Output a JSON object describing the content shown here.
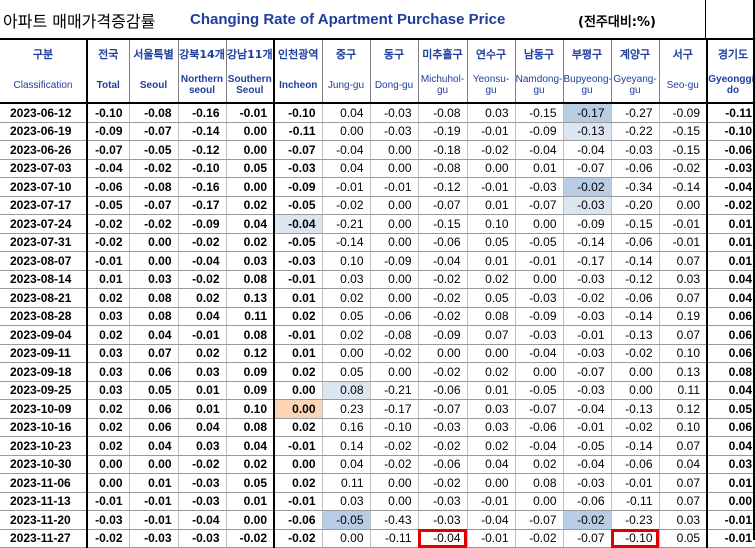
{
  "title": {
    "korean": "아파트 매매가격증감률",
    "english": "Changing Rate of Apartment Purchase Price",
    "unit": "(전주대비:%)"
  },
  "headers": [
    {
      "kr": "구분",
      "en": "Classification"
    },
    {
      "kr": "전국",
      "en": "Total"
    },
    {
      "kr": "서울특별",
      "en": "Seoul"
    },
    {
      "kr": "강북14개",
      "en": "Northern seoul"
    },
    {
      "kr": "강남11개",
      "en": "Southern Seoul"
    },
    {
      "kr": "인천광역",
      "en": "Incheon"
    },
    {
      "kr": "중구",
      "en": "Jung-gu"
    },
    {
      "kr": "동구",
      "en": "Dong-gu"
    },
    {
      "kr": "미추홀구",
      "en": "Michuhol-gu"
    },
    {
      "kr": "연수구",
      "en": "Yeonsu-gu"
    },
    {
      "kr": "남동구",
      "en": "Namdong-gu"
    },
    {
      "kr": "부평구",
      "en": "Bupyeong-gu"
    },
    {
      "kr": "계양구",
      "en": "Gyeyang-gu"
    },
    {
      "kr": "서구",
      "en": "Seo-gu"
    },
    {
      "kr": "경기도",
      "en": "Gyeonggi-do"
    }
  ],
  "rows": [
    {
      "date": "2023-06-12",
      "v": [
        "-0.10",
        "-0.08",
        "-0.16",
        "-0.01",
        "-0.10",
        "0.04",
        "-0.03",
        "-0.08",
        "0.03",
        "-0.15",
        "-0.17",
        "-0.27",
        "-0.09",
        "-0.11"
      ]
    },
    {
      "date": "2023-06-19",
      "v": [
        "-0.09",
        "-0.07",
        "-0.14",
        "0.00",
        "-0.11",
        "0.00",
        "-0.03",
        "-0.19",
        "-0.01",
        "-0.09",
        "-0.13",
        "-0.22",
        "-0.15",
        "-0.10"
      ]
    },
    {
      "date": "2023-06-26",
      "v": [
        "-0.07",
        "-0.05",
        "-0.12",
        "0.00",
        "-0.07",
        "-0.04",
        "0.00",
        "-0.18",
        "-0.02",
        "-0.04",
        "-0.04",
        "-0.03",
        "-0.15",
        "-0.06"
      ]
    },
    {
      "date": "2023-07-03",
      "v": [
        "-0.04",
        "-0.02",
        "-0.10",
        "0.05",
        "-0.03",
        "0.04",
        "0.00",
        "-0.08",
        "0.00",
        "0.01",
        "-0.07",
        "-0.06",
        "-0.02",
        "-0.03"
      ]
    },
    {
      "date": "2023-07-10",
      "v": [
        "-0.06",
        "-0.08",
        "-0.16",
        "0.00",
        "-0.09",
        "-0.01",
        "-0.01",
        "-0.12",
        "-0.01",
        "-0.03",
        "-0.02",
        "-0.34",
        "-0.14",
        "-0.04"
      ]
    },
    {
      "date": "2023-07-17",
      "v": [
        "-0.05",
        "-0.07",
        "-0.17",
        "0.02",
        "-0.05",
        "-0.02",
        "0.00",
        "-0.07",
        "0.01",
        "-0.07",
        "-0.03",
        "-0.20",
        "0.00",
        "-0.02"
      ]
    },
    {
      "date": "2023-07-24",
      "v": [
        "-0.02",
        "-0.02",
        "-0.09",
        "0.04",
        "-0.04",
        "-0.21",
        "0.00",
        "-0.15",
        "0.10",
        "0.00",
        "-0.09",
        "-0.15",
        "-0.01",
        "0.01"
      ]
    },
    {
      "date": "2023-07-31",
      "v": [
        "-0.02",
        "0.00",
        "-0.02",
        "0.02",
        "-0.05",
        "-0.14",
        "0.00",
        "-0.06",
        "0.05",
        "-0.05",
        "-0.14",
        "-0.06",
        "-0.01",
        "0.01"
      ]
    },
    {
      "date": "2023-08-07",
      "v": [
        "-0.01",
        "0.00",
        "-0.04",
        "0.03",
        "-0.03",
        "0.10",
        "-0.09",
        "-0.04",
        "0.01",
        "-0.01",
        "-0.17",
        "-0.14",
        "0.07",
        "0.01"
      ]
    },
    {
      "date": "2023-08-14",
      "v": [
        "0.01",
        "0.03",
        "-0.02",
        "0.08",
        "-0.01",
        "0.03",
        "0.00",
        "-0.02",
        "0.02",
        "0.00",
        "-0.03",
        "-0.12",
        "0.03",
        "0.04"
      ]
    },
    {
      "date": "2023-08-21",
      "v": [
        "0.02",
        "0.08",
        "0.02",
        "0.13",
        "0.01",
        "0.02",
        "0.00",
        "-0.02",
        "0.05",
        "-0.03",
        "-0.02",
        "-0.06",
        "0.07",
        "0.04"
      ]
    },
    {
      "date": "2023-08-28",
      "v": [
        "0.03",
        "0.08",
        "0.04",
        "0.11",
        "0.02",
        "0.05",
        "-0.06",
        "-0.02",
        "0.08",
        "-0.09",
        "-0.03",
        "-0.14",
        "0.19",
        "0.06"
      ]
    },
    {
      "date": "2023-09-04",
      "v": [
        "0.02",
        "0.04",
        "-0.01",
        "0.08",
        "-0.01",
        "0.02",
        "-0.08",
        "-0.09",
        "0.07",
        "-0.03",
        "-0.01",
        "-0.13",
        "0.07",
        "0.06"
      ]
    },
    {
      "date": "2023-09-11",
      "v": [
        "0.03",
        "0.07",
        "0.02",
        "0.12",
        "0.01",
        "0.00",
        "-0.02",
        "0.00",
        "0.00",
        "-0.04",
        "-0.03",
        "-0.02",
        "0.10",
        "0.06"
      ]
    },
    {
      "date": "2023-09-18",
      "v": [
        "0.03",
        "0.06",
        "0.03",
        "0.09",
        "0.02",
        "0.05",
        "0.00",
        "-0.02",
        "0.02",
        "0.00",
        "-0.07",
        "0.00",
        "0.13",
        "0.08"
      ]
    },
    {
      "date": "2023-09-25",
      "v": [
        "0.03",
        "0.05",
        "0.01",
        "0.09",
        "0.00",
        "0.08",
        "-0.21",
        "-0.06",
        "0.01",
        "-0.05",
        "-0.03",
        "0.00",
        "0.11",
        "0.04"
      ]
    },
    {
      "date": "2023-10-09",
      "v": [
        "0.02",
        "0.06",
        "0.01",
        "0.10",
        "0.00",
        "0.23",
        "-0.17",
        "-0.07",
        "0.03",
        "-0.07",
        "-0.04",
        "-0.13",
        "0.12",
        "0.05"
      ]
    },
    {
      "date": "2023-10-16",
      "v": [
        "0.02",
        "0.06",
        "0.04",
        "0.08",
        "0.02",
        "0.16",
        "-0.10",
        "-0.03",
        "0.03",
        "-0.06",
        "-0.01",
        "-0.02",
        "0.10",
        "0.06"
      ]
    },
    {
      "date": "2023-10-23",
      "v": [
        "0.02",
        "0.04",
        "0.03",
        "0.04",
        "-0.01",
        "0.14",
        "-0.02",
        "-0.02",
        "0.02",
        "-0.04",
        "-0.05",
        "-0.14",
        "0.07",
        "0.04"
      ]
    },
    {
      "date": "2023-10-30",
      "v": [
        "0.00",
        "0.00",
        "-0.02",
        "0.02",
        "0.00",
        "0.04",
        "-0.02",
        "-0.06",
        "0.04",
        "0.02",
        "-0.04",
        "-0.06",
        "0.04",
        "0.03"
      ]
    },
    {
      "date": "2023-11-06",
      "v": [
        "0.00",
        "0.01",
        "-0.03",
        "0.05",
        "0.02",
        "0.11",
        "0.00",
        "-0.02",
        "0.00",
        "0.08",
        "-0.03",
        "-0.01",
        "0.07",
        "0.01"
      ]
    },
    {
      "date": "2023-11-13",
      "v": [
        "-0.01",
        "-0.01",
        "-0.03",
        "0.01",
        "-0.01",
        "0.03",
        "0.00",
        "-0.03",
        "-0.01",
        "0.00",
        "-0.06",
        "-0.11",
        "0.07",
        "0.00"
      ]
    },
    {
      "date": "2023-11-20",
      "v": [
        "-0.03",
        "-0.01",
        "-0.04",
        "0.00",
        "-0.06",
        "-0.05",
        "-0.43",
        "-0.03",
        "-0.04",
        "-0.07",
        "-0.02",
        "-0.23",
        "0.03",
        "-0.01"
      ]
    },
    {
      "date": "2023-11-27",
      "v": [
        "-0.02",
        "-0.03",
        "-0.03",
        "-0.02",
        "-0.02",
        "0.00",
        "-0.11",
        "-0.04",
        "-0.01",
        "-0.02",
        "-0.07",
        "-0.10",
        "0.05",
        "-0.01"
      ]
    }
  ],
  "shading": {
    "0-11": "neg2",
    "1-11": "neg1",
    "4-11": "neg2",
    "5-11": "neg1",
    "6-5": "neg1",
    "15-6": "neg1",
    "16-5": "pos1",
    "22-6": "neg2",
    "22-11": "neg2"
  },
  "highlighted": [
    "23-8",
    "23-12"
  ],
  "colors": {
    "header_text": "#1f3fa0",
    "neg_light": "#dce6f1",
    "neg_dark": "#b8cce4",
    "pos_light": "#fbd5b5",
    "highlight": "#e00000"
  }
}
